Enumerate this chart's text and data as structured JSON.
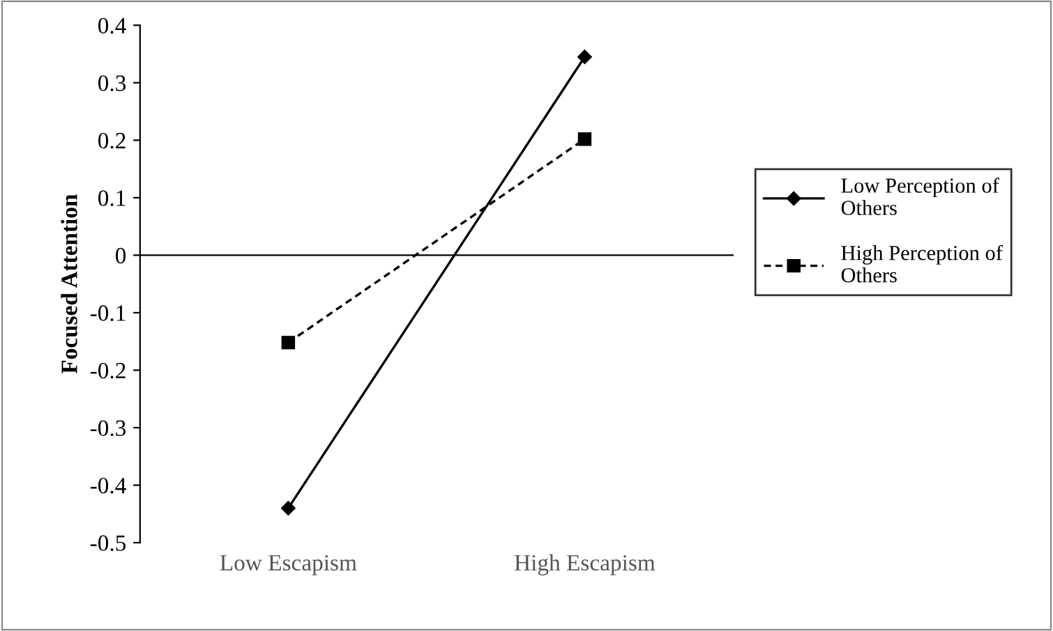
{
  "chart_data": {
    "type": "line",
    "ylabel": "Focused Attention",
    "categories": [
      "Low Escapism",
      "High Escapism"
    ],
    "series": [
      {
        "name": "Low Perception of Others",
        "color": "#000000",
        "values": [
          -0.44,
          0.345
        ],
        "marker": "diamond",
        "line_style": "solid"
      },
      {
        "name": "High Perception of Others",
        "color": "#000000",
        "values": [
          -0.152,
          0.202
        ],
        "marker": "square",
        "line_style": "dashed"
      }
    ],
    "ylim": [
      -0.5,
      0.4
    ],
    "yticks": [
      {
        "value": -0.5,
        "label": "-0.5"
      },
      {
        "value": -0.4,
        "label": "-0.4"
      },
      {
        "value": -0.3,
        "label": "-0.3"
      },
      {
        "value": -0.2,
        "label": "-0.2"
      },
      {
        "value": -0.1,
        "label": "-0.1"
      },
      0,
      0.1,
      0.2,
      0.3,
      0.4
    ],
    "legend": "right"
  }
}
